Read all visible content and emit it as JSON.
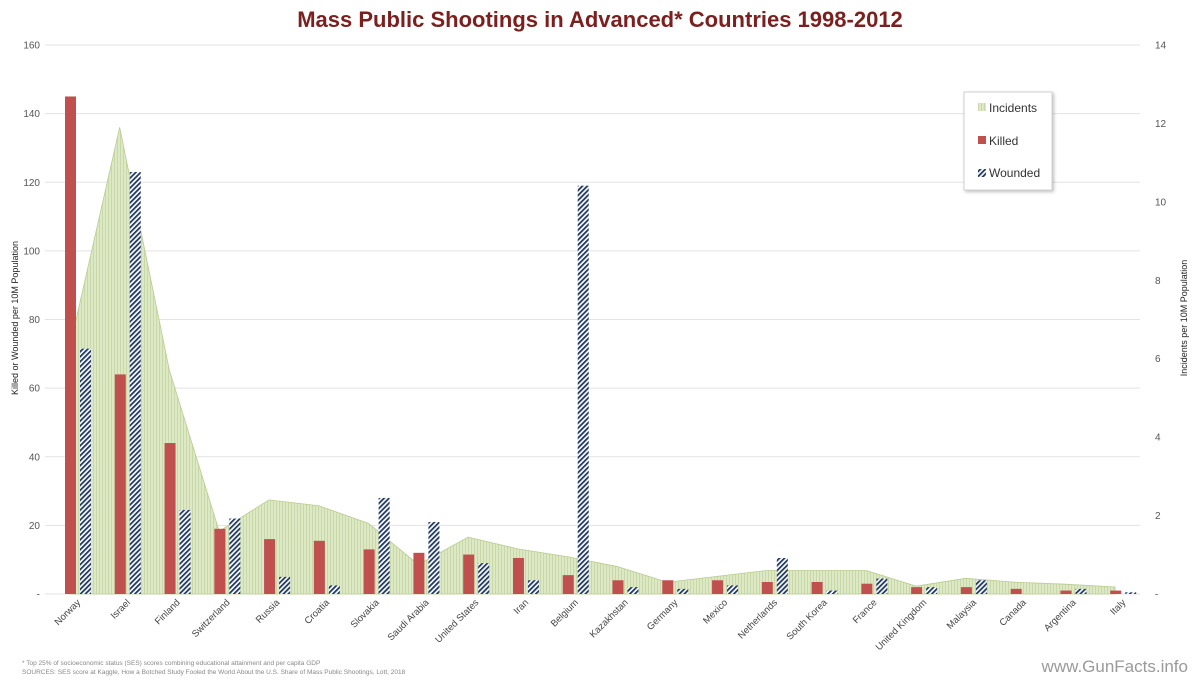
{
  "chart_data": {
    "type": "bar",
    "title": "Mass Public Shootings in Advanced* Countries 1998-2012",
    "ylabel": "Killed or Wounded per 10M Population",
    "y2label": "Incidents per 10M Population",
    "ylim": [
      0,
      160
    ],
    "y2lim": [
      0,
      14
    ],
    "yticks": [
      "-",
      "20",
      "40",
      "60",
      "80",
      "100",
      "120",
      "140",
      "160"
    ],
    "y2ticks": [
      "-",
      "2",
      "4",
      "6",
      "8",
      "10",
      "12",
      "14"
    ],
    "categories": [
      "Norway",
      "Israel",
      "Finland",
      "Switzerland",
      "Russia",
      "Croatia",
      "Slovakia",
      "Saudi Arabia",
      "United States",
      "Iran",
      "Belgium",
      "Kazakhstan",
      "Germany",
      "Mexico",
      "Netherlands",
      "South Korea",
      "France",
      "United Kingdom",
      "Malaysia",
      "Canada",
      "Argentina",
      "Italy"
    ],
    "series": [
      {
        "name": "Incidents",
        "type": "area",
        "axis": "right",
        "color": "#d6e4bc",
        "values": [
          6.3,
          11.9,
          5.7,
          1.6,
          2.4,
          2.25,
          1.8,
          0.75,
          1.45,
          1.15,
          0.95,
          0.7,
          0.3,
          0.45,
          0.6,
          0.6,
          0.6,
          0.2,
          0.4,
          0.3,
          0.25,
          0.18
        ]
      },
      {
        "name": "Killed",
        "type": "bar",
        "axis": "left",
        "color": "#c0504d",
        "values": [
          145,
          64,
          44,
          19,
          16,
          15.5,
          13,
          12,
          11.5,
          10.5,
          5.5,
          4,
          4,
          4,
          3.5,
          3.5,
          3,
          2,
          2,
          1.5,
          1,
          1
        ]
      },
      {
        "name": "Wounded",
        "type": "bar",
        "axis": "left",
        "color": "#1f3864",
        "values": [
          71.5,
          123,
          24.5,
          22,
          5,
          2.5,
          28,
          21,
          9,
          4,
          119,
          2,
          1.5,
          2.5,
          10.5,
          1,
          4.5,
          2,
          4,
          0,
          1.5,
          0.5
        ]
      }
    ],
    "legend_position": "top-right",
    "grid": true
  },
  "footnotes": {
    "line1": "* Top 25% of socioeconomic status (SES) scores combining educational attainment and per capita GDP",
    "line2": "SOURCES: SES score at Kaggle, How a Botched Study Fooled the World About the U.S. Share of Mass Public Shootings, Lott, 2018"
  },
  "brand": "www.GunFacts.info"
}
